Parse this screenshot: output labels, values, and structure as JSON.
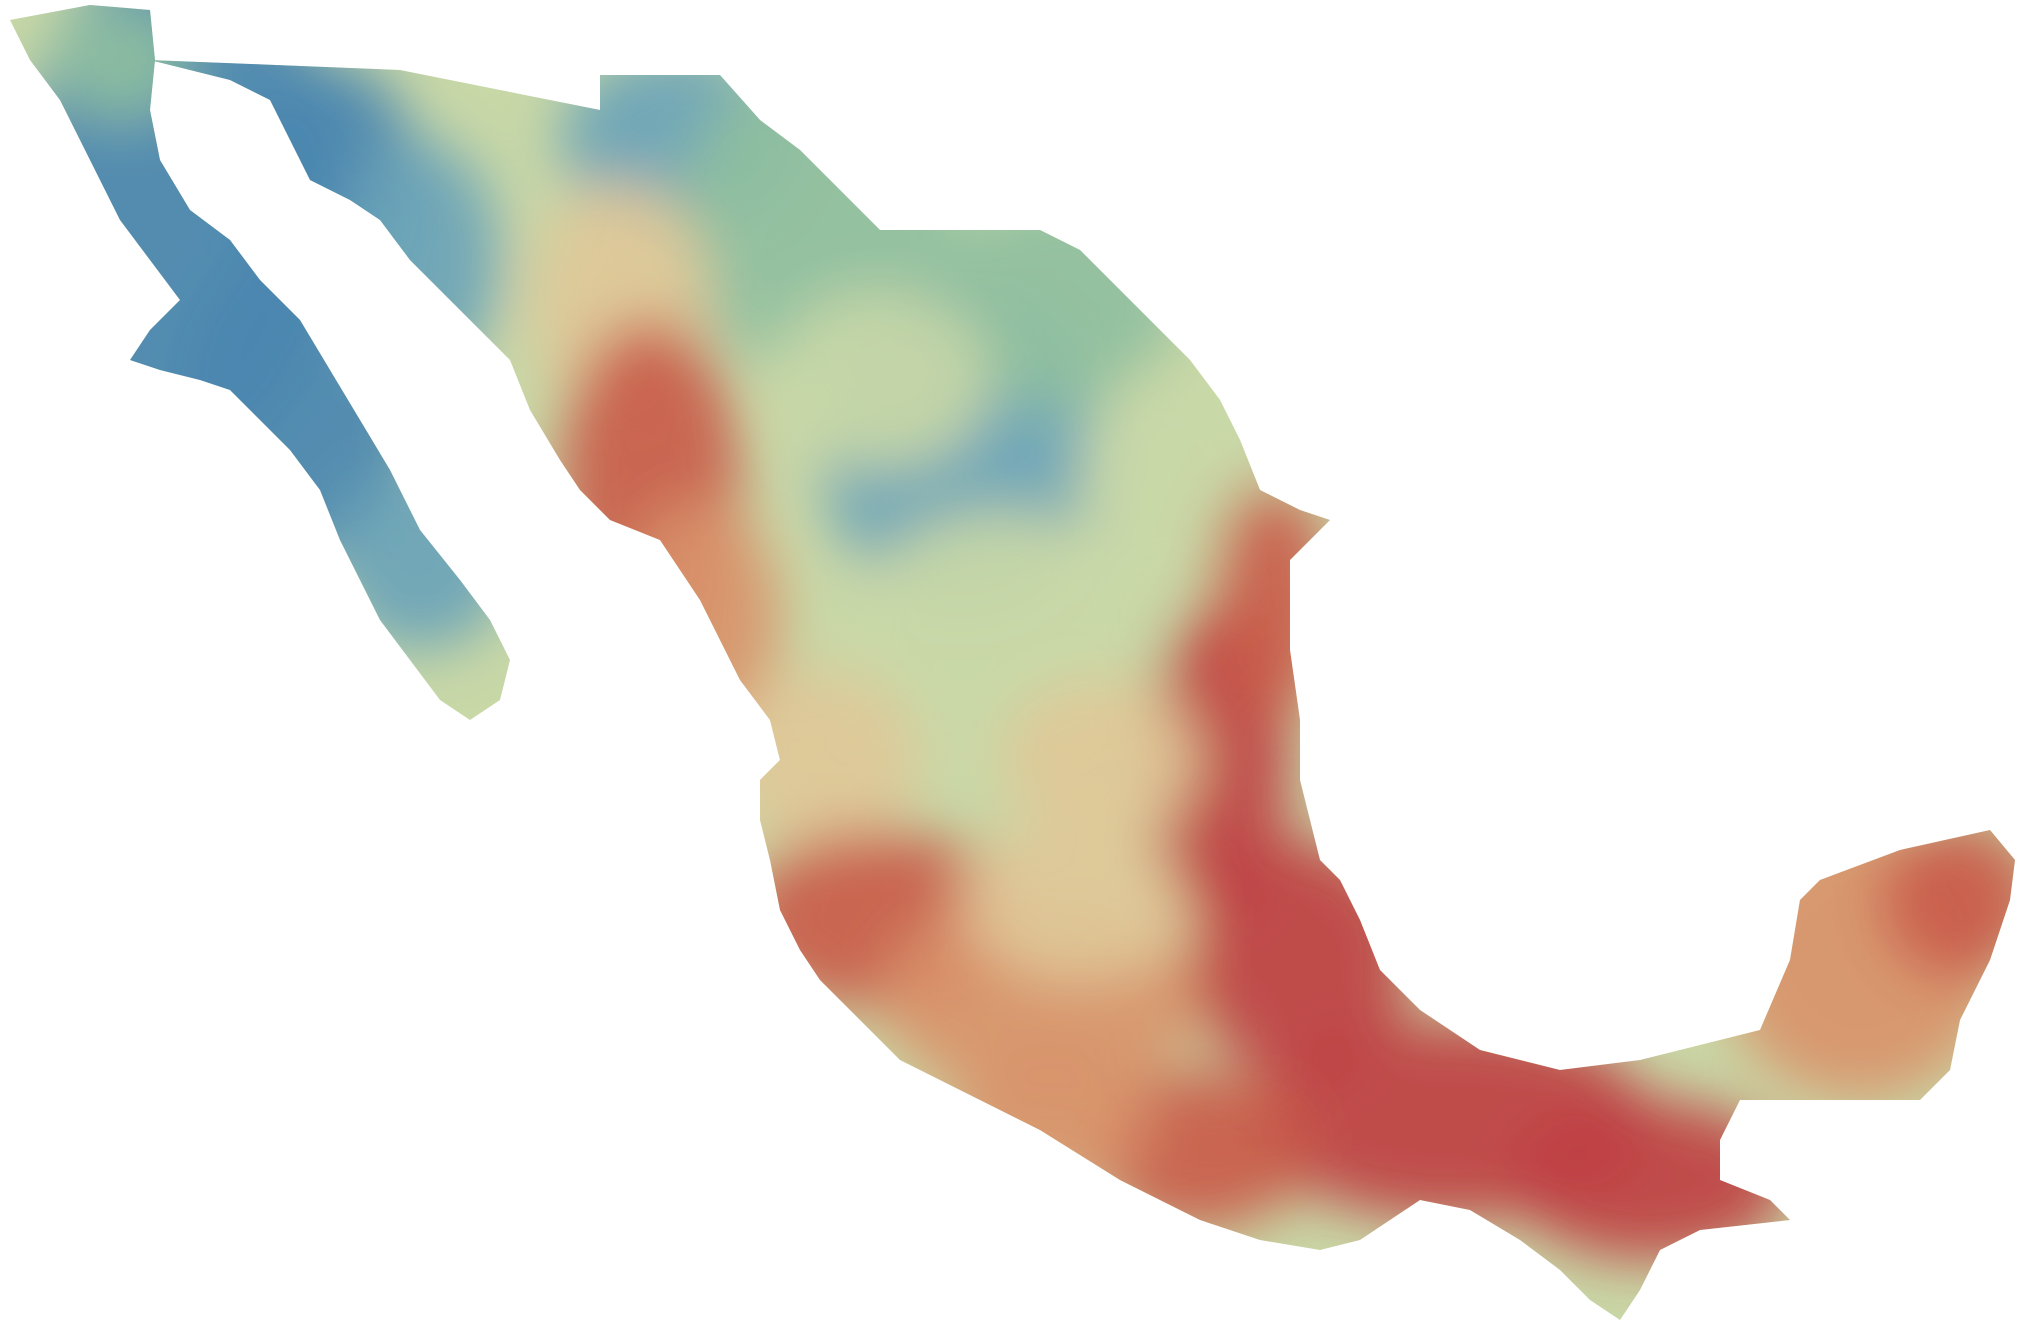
{
  "map": {
    "region": "Mexico",
    "type": "choropleth-raster",
    "labels": [],
    "color_scale": {
      "low": "#4a86b0",
      "low_mid": "#6aa3b8",
      "mid_low": "#8fbf9f",
      "mid": "#c9d8a7",
      "mid_high": "#e0c898",
      "high_mid": "#d9936a",
      "high": "#c95b4a",
      "max": "#bf3f43"
    },
    "background": "#ffffff"
  }
}
